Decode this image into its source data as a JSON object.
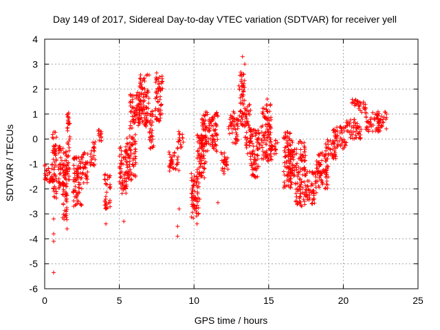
{
  "chart_data": {
    "type": "scatter",
    "title": "Day 149 of 2017, Sidereal Day-to-day VTEC variation (SDTVAR) for receiver yell",
    "xlabel": "GPS time / hours",
    "ylabel": "SDTVAR / TECUs",
    "xlim": [
      0,
      25
    ],
    "ylim": [
      -6,
      4
    ],
    "xticks": [
      "0",
      "5",
      "10",
      "15",
      "20",
      "25"
    ],
    "yticks": [
      "-6",
      "-5",
      "-4",
      "-3",
      "-2",
      "-1",
      "0",
      "1",
      "2",
      "3",
      "4"
    ],
    "grid": true,
    "marker": "+",
    "series_color": "#ff0000",
    "clusters": [
      {
        "x": [
          0.0,
          0.6
        ],
        "y": [
          -1.8,
          -1.0
        ]
      },
      {
        "x": [
          0.5,
          0.8
        ],
        "y": [
          -2.5,
          0.3
        ]
      },
      {
        "x": [
          0.9,
          1.5
        ],
        "y": [
          -2.0,
          -0.3
        ]
      },
      {
        "x": [
          1.2,
          1.5
        ],
        "y": [
          -3.3,
          -1.0
        ]
      },
      {
        "x": [
          1.5,
          1.7
        ],
        "y": [
          -1.8,
          1.0
        ]
      },
      {
        "x": [
          1.9,
          2.5
        ],
        "y": [
          -2.7,
          -0.7
        ]
      },
      {
        "x": [
          2.5,
          2.9
        ],
        "y": [
          -1.8,
          -0.5
        ]
      },
      {
        "x": [
          3.0,
          3.4
        ],
        "y": [
          -1.1,
          -0.1
        ]
      },
      {
        "x": [
          3.6,
          3.8
        ],
        "y": [
          -0.1,
          0.4
        ]
      },
      {
        "x": [
          4.0,
          4.4
        ],
        "y": [
          -2.8,
          -1.4
        ]
      },
      {
        "x": [
          5.0,
          5.5
        ],
        "y": [
          -2.2,
          -0.2
        ]
      },
      {
        "x": [
          5.5,
          6.1
        ],
        "y": [
          -1.7,
          0.2
        ]
      },
      {
        "x": [
          5.7,
          6.4
        ],
        "y": [
          0.4,
          1.9
        ]
      },
      {
        "x": [
          6.3,
          7.0
        ],
        "y": [
          0.5,
          2.6
        ]
      },
      {
        "x": [
          7.0,
          7.3
        ],
        "y": [
          -0.4,
          1.2
        ]
      },
      {
        "x": [
          7.4,
          7.9
        ],
        "y": [
          0.7,
          2.6
        ]
      },
      {
        "x": [
          8.3,
          9.0
        ],
        "y": [
          -1.3,
          -0.5
        ]
      },
      {
        "x": [
          8.9,
          9.3
        ],
        "y": [
          -0.4,
          0.3
        ]
      },
      {
        "x": [
          9.8,
          10.4
        ],
        "y": [
          -3.2,
          -1.3
        ]
      },
      {
        "x": [
          10.2,
          10.8
        ],
        "y": [
          -1.6,
          0.2
        ]
      },
      {
        "x": [
          10.5,
          11.1
        ],
        "y": [
          -0.5,
          1.1
        ]
      },
      {
        "x": [
          11.1,
          11.6
        ],
        "y": [
          -0.6,
          1.1
        ]
      },
      {
        "x": [
          11.8,
          12.3
        ],
        "y": [
          -1.4,
          -0.5
        ]
      },
      {
        "x": [
          12.3,
          12.7
        ],
        "y": [
          0.2,
          1.1
        ]
      },
      {
        "x": [
          12.6,
          13.0
        ],
        "y": [
          -0.2,
          0.8
        ]
      },
      {
        "x": [
          13.0,
          13.4
        ],
        "y": [
          0.5,
          2.7
        ]
      },
      {
        "x": [
          13.4,
          13.8
        ],
        "y": [
          -0.7,
          1.4
        ]
      },
      {
        "x": [
          13.8,
          14.4
        ],
        "y": [
          -1.6,
          0.4
        ]
      },
      {
        "x": [
          14.5,
          15.2
        ],
        "y": [
          -0.9,
          1.4
        ]
      },
      {
        "x": [
          15.0,
          15.5
        ],
        "y": [
          -0.6,
          0.0
        ]
      },
      {
        "x": [
          16.0,
          16.6
        ],
        "y": [
          -2.0,
          0.3
        ]
      },
      {
        "x": [
          16.3,
          16.9
        ],
        "y": [
          -1.5,
          -0.4
        ]
      },
      {
        "x": [
          16.8,
          17.5
        ],
        "y": [
          -2.7,
          -1.1
        ]
      },
      {
        "x": [
          17.0,
          17.5
        ],
        "y": [
          -0.9,
          0.0
        ]
      },
      {
        "x": [
          17.5,
          18.2
        ],
        "y": [
          -2.6,
          -1.3
        ]
      },
      {
        "x": [
          18.2,
          19.0
        ],
        "y": [
          -2.0,
          -0.5
        ]
      },
      {
        "x": [
          18.8,
          19.5
        ],
        "y": [
          -0.8,
          0.0
        ]
      },
      {
        "x": [
          19.3,
          20.2
        ],
        "y": [
          -0.4,
          0.5
        ]
      },
      {
        "x": [
          20.2,
          21.2
        ],
        "y": [
          0.0,
          0.8
        ]
      },
      {
        "x": [
          20.5,
          21.0
        ],
        "y": [
          1.3,
          1.6
        ]
      },
      {
        "x": [
          21.0,
          21.6
        ],
        "y": [
          1.0,
          1.5
        ]
      },
      {
        "x": [
          21.5,
          22.5
        ],
        "y": [
          0.3,
          1.1
        ]
      },
      {
        "x": [
          22.3,
          22.9
        ],
        "y": [
          0.4,
          1.1
        ]
      }
    ],
    "outliers": [
      {
        "x": 0.6,
        "y": -5.35
      },
      {
        "x": 0.6,
        "y": -4.1
      },
      {
        "x": 0.6,
        "y": -3.8
      },
      {
        "x": 0.6,
        "y": -3.2
      },
      {
        "x": 1.5,
        "y": -3.6
      },
      {
        "x": 4.1,
        "y": -3.4
      },
      {
        "x": 5.3,
        "y": -3.3
      },
      {
        "x": 8.9,
        "y": -3.9
      },
      {
        "x": 8.9,
        "y": -3.5
      },
      {
        "x": 9.0,
        "y": -2.8
      },
      {
        "x": 10.2,
        "y": -3.4
      },
      {
        "x": 11.6,
        "y": -2.55
      },
      {
        "x": 13.25,
        "y": 3.3
      },
      {
        "x": 13.4,
        "y": 3.0
      },
      {
        "x": 14.9,
        "y": 1.6
      },
      {
        "x": 15.6,
        "y": -0.15
      },
      {
        "x": 1.6,
        "y": 1.05
      },
      {
        "x": 7.5,
        "y": 2.65
      }
    ]
  }
}
